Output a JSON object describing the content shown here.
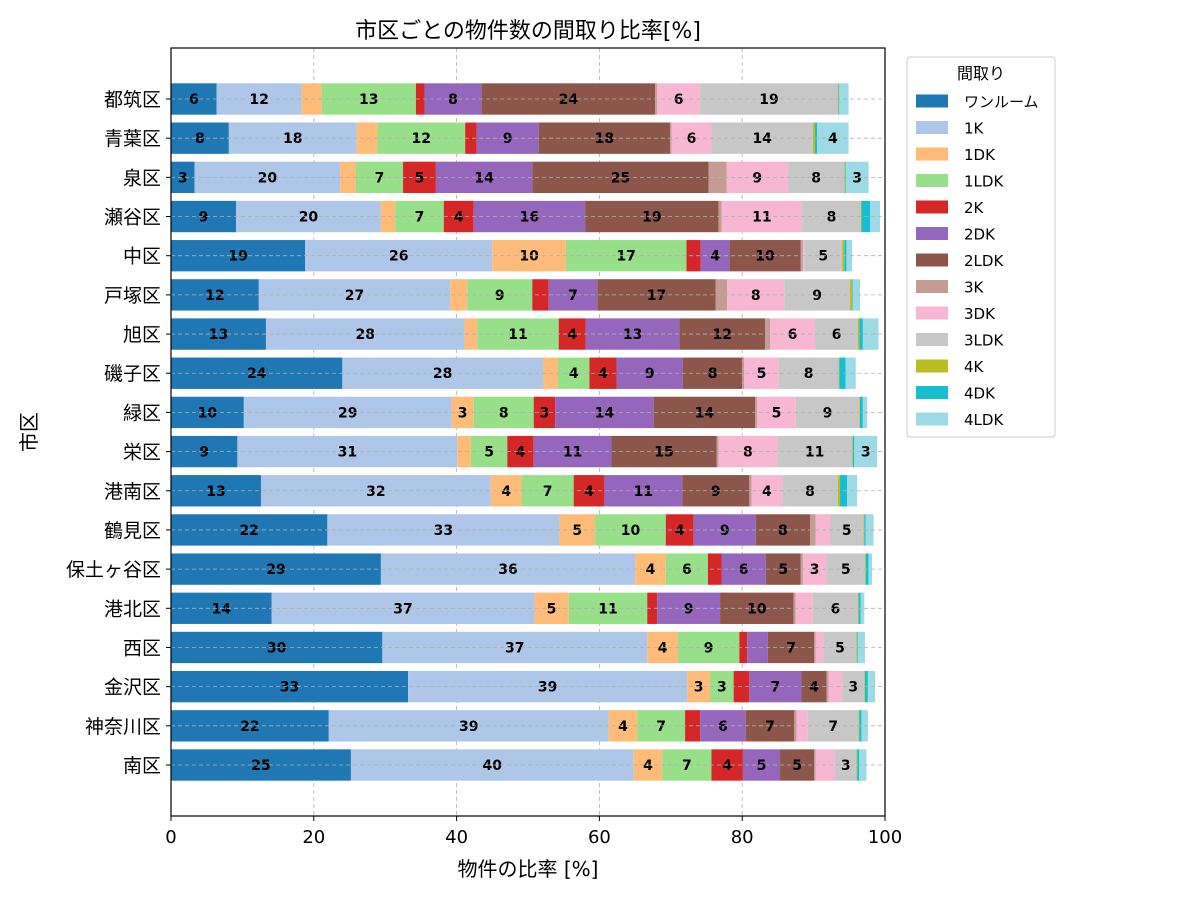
{
  "chart_data": {
    "type": "bar",
    "orientation": "horizontal",
    "stacked": true,
    "title": "市区ごとの物件数の間取り比率[%]",
    "xlabel": "物件の比率 [%]",
    "ylabel": "市区",
    "xlim": [
      0,
      100
    ],
    "xticks": [
      0,
      20,
      40,
      60,
      80,
      100
    ],
    "grid": true,
    "legend_title": "間取り",
    "legend_position": "outside-top-right",
    "categories": [
      "都筑区",
      "青葉区",
      "泉区",
      "瀬谷区",
      "中区",
      "戸塚区",
      "旭区",
      "磯子区",
      "緑区",
      "栄区",
      "港南区",
      "鶴見区",
      "保土ヶ谷区",
      "港北区",
      "西区",
      "金沢区",
      "神奈川区",
      "南区"
    ],
    "series": [
      {
        "name": "ワンルーム",
        "color": "#1f77b4",
        "values": [
          6.4,
          8.1,
          3.3,
          9.1,
          18.8,
          12.3,
          13.3,
          24.0,
          10.2,
          9.3,
          12.6,
          21.9,
          29.4,
          14.1,
          29.6,
          33.2,
          22.1,
          25.2
        ]
      },
      {
        "name": "1K",
        "color": "#aec7e8",
        "values": [
          11.9,
          17.9,
          20.4,
          20.3,
          26.2,
          26.8,
          27.8,
          28.1,
          29.1,
          30.8,
          32.2,
          32.5,
          35.6,
          36.8,
          37.1,
          39.1,
          39.2,
          39.6
        ]
      },
      {
        "name": "1DK",
        "color": "#ffbb78",
        "values": [
          2.8,
          2.9,
          2.2,
          2.0,
          10.3,
          2.4,
          1.8,
          2.1,
          3.1,
          1.9,
          4.3,
          5.0,
          4.3,
          4.8,
          4.3,
          3.2,
          4.0,
          4.0
        ]
      },
      {
        "name": "1LDK",
        "color": "#98df8a",
        "values": [
          13.2,
          12.3,
          6.6,
          6.8,
          16.9,
          9.1,
          11.4,
          4.4,
          8.4,
          5.1,
          7.3,
          9.9,
          5.9,
          11.0,
          8.6,
          3.3,
          6.7,
          6.9
        ]
      },
      {
        "name": "2K",
        "color": "#d62728",
        "values": [
          1.2,
          1.6,
          4.6,
          4.2,
          2.0,
          2.3,
          3.8,
          3.8,
          3.0,
          3.7,
          4.3,
          3.9,
          1.9,
          1.4,
          1.1,
          2.2,
          2.1,
          4.4
        ]
      },
      {
        "name": "2DK",
        "color": "#9467bd",
        "values": [
          8.0,
          8.7,
          13.5,
          15.6,
          4.0,
          6.8,
          13.1,
          9.3,
          13.8,
          10.9,
          10.9,
          8.7,
          6.2,
          8.8,
          2.9,
          7.3,
          6.4,
          5.2
        ]
      },
      {
        "name": "2LDK",
        "color": "#8c564b",
        "values": [
          24.3,
          18.4,
          24.7,
          18.7,
          10.0,
          16.6,
          12.0,
          8.3,
          14.2,
          14.7,
          9.4,
          7.6,
          4.9,
          10.3,
          6.5,
          3.5,
          6.8,
          4.8
        ]
      },
      {
        "name": "3K",
        "color": "#c49c94",
        "values": [
          0.3,
          0.2,
          2.5,
          0.4,
          0.3,
          1.6,
          0.7,
          0.3,
          0.3,
          0.3,
          0.3,
          0.8,
          0.3,
          0.3,
          0.2,
          0.3,
          0.3,
          0.2
        ]
      },
      {
        "name": "3DK",
        "color": "#f7b6d2",
        "values": [
          6.0,
          5.6,
          8.6,
          11.3,
          0.2,
          8.0,
          6.3,
          4.8,
          5.4,
          8.2,
          4.3,
          2.0,
          3.3,
          2.4,
          1.1,
          1.9,
          1.6,
          2.7
        ]
      },
      {
        "name": "3LDK",
        "color": "#c7c7c7",
        "values": [
          19.3,
          14.2,
          7.9,
          8.2,
          5.3,
          9.2,
          6.0,
          8.4,
          8.9,
          10.5,
          7.8,
          4.7,
          5.4,
          6.3,
          4.6,
          3.1,
          7.1,
          3.0
        ]
      },
      {
        "name": "4K",
        "color": "#bcbd22",
        "values": [
          0.1,
          0.3,
          0.1,
          0.1,
          0.3,
          0.3,
          0.2,
          0.1,
          0.1,
          0.1,
          0.3,
          0.1,
          0.1,
          0.1,
          0.1,
          0.1,
          0.1,
          0.1
        ]
      },
      {
        "name": "4DK",
        "color": "#17becf",
        "values": [
          0.1,
          0.3,
          0.1,
          1.2,
          0.3,
          0.1,
          0.5,
          0.9,
          0.4,
          0.2,
          1.0,
          0.2,
          0.4,
          0.3,
          0.1,
          0.4,
          0.3,
          0.3
        ]
      },
      {
        "name": "4LDK",
        "color": "#9edae5",
        "values": [
          1.3,
          4.4,
          3.2,
          1.4,
          0.8,
          1.0,
          2.2,
          1.4,
          0.6,
          3.2,
          1.4,
          1.1,
          0.5,
          0.5,
          1.0,
          1.0,
          0.9,
          1.0
        ]
      }
    ]
  }
}
